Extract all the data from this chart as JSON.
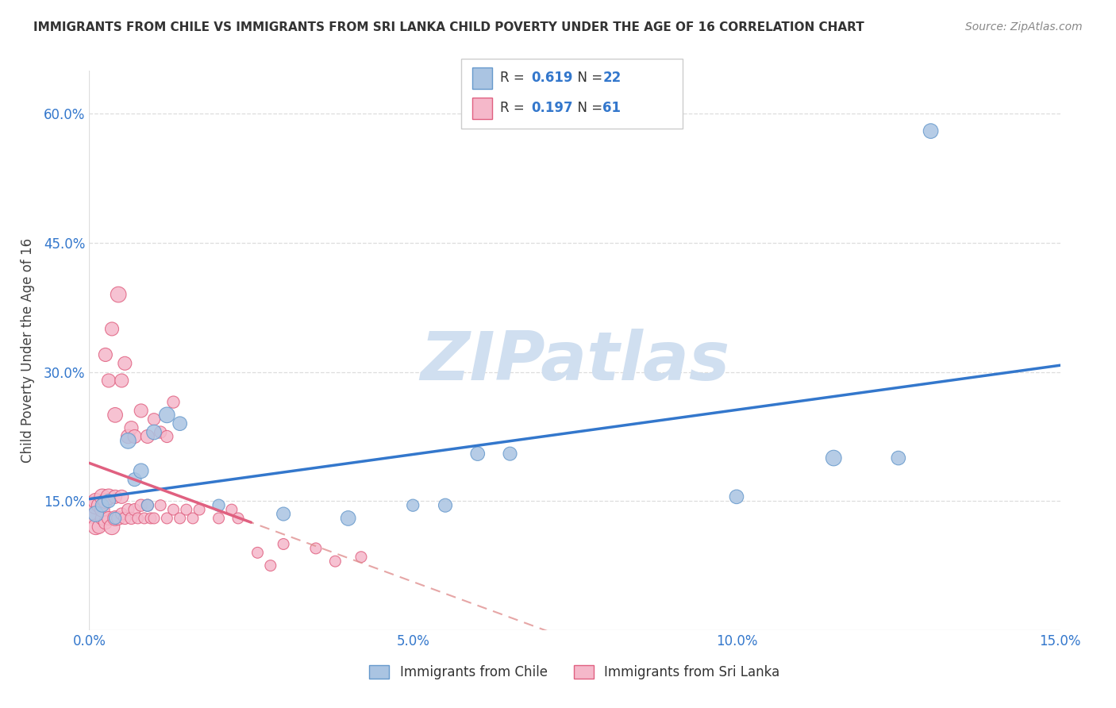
{
  "title": "IMMIGRANTS FROM CHILE VS IMMIGRANTS FROM SRI LANKA CHILD POVERTY UNDER THE AGE OF 16 CORRELATION CHART",
  "source": "Source: ZipAtlas.com",
  "ylabel": "Child Poverty Under the Age of 16",
  "xlim": [
    0.0,
    0.15
  ],
  "ylim": [
    0.0,
    0.65
  ],
  "yticks": [
    0.0,
    0.15,
    0.3,
    0.45,
    0.6
  ],
  "ytick_labels": [
    "",
    "15.0%",
    "30.0%",
    "45.0%",
    "60.0%"
  ],
  "xticks": [
    0.0,
    0.05,
    0.1,
    0.15
  ],
  "xtick_labels": [
    "0.0%",
    "5.0%",
    "10.0%",
    "15.0%"
  ],
  "chile_color": "#aac4e2",
  "chile_edge_color": "#6699cc",
  "srilanka_color": "#f5b8ca",
  "srilanka_edge_color": "#e06080",
  "chile_line_color": "#3377cc",
  "srilanka_line_color": "#e06080",
  "dashed_line_color": "#e09090",
  "watermark_color": "#d0dff0",
  "R_chile": 0.619,
  "N_chile": 22,
  "R_srilanka": 0.197,
  "N_srilanka": 61,
  "chile_scatter_x": [
    0.001,
    0.002,
    0.003,
    0.004,
    0.006,
    0.007,
    0.008,
    0.009,
    0.01,
    0.012,
    0.014,
    0.02,
    0.03,
    0.04,
    0.05,
    0.055,
    0.06,
    0.065,
    0.1,
    0.115,
    0.125,
    0.13
  ],
  "chile_scatter_y": [
    0.135,
    0.145,
    0.15,
    0.13,
    0.22,
    0.175,
    0.185,
    0.145,
    0.23,
    0.25,
    0.24,
    0.145,
    0.135,
    0.13,
    0.145,
    0.145,
    0.205,
    0.205,
    0.155,
    0.2,
    0.2,
    0.58
  ],
  "chile_scatter_size": [
    200,
    150,
    150,
    120,
    200,
    150,
    180,
    120,
    180,
    200,
    160,
    120,
    150,
    180,
    120,
    150,
    160,
    150,
    160,
    200,
    160,
    180
  ],
  "srilanka_scatter_x": [
    0.0005,
    0.001,
    0.001,
    0.001,
    0.0015,
    0.0015,
    0.002,
    0.002,
    0.002,
    0.0025,
    0.0025,
    0.0025,
    0.003,
    0.003,
    0.003,
    0.0035,
    0.0035,
    0.004,
    0.004,
    0.004,
    0.0045,
    0.0045,
    0.005,
    0.005,
    0.005,
    0.0055,
    0.0055,
    0.006,
    0.006,
    0.0065,
    0.0065,
    0.007,
    0.007,
    0.0075,
    0.008,
    0.008,
    0.0085,
    0.009,
    0.009,
    0.0095,
    0.01,
    0.01,
    0.011,
    0.011,
    0.012,
    0.012,
    0.013,
    0.013,
    0.014,
    0.015,
    0.016,
    0.017,
    0.02,
    0.022,
    0.023,
    0.026,
    0.028,
    0.03,
    0.035,
    0.038,
    0.042
  ],
  "srilanka_scatter_y": [
    0.14,
    0.12,
    0.145,
    0.15,
    0.12,
    0.145,
    0.13,
    0.14,
    0.155,
    0.125,
    0.15,
    0.32,
    0.13,
    0.155,
    0.29,
    0.12,
    0.35,
    0.13,
    0.155,
    0.25,
    0.13,
    0.39,
    0.135,
    0.155,
    0.29,
    0.13,
    0.31,
    0.14,
    0.225,
    0.13,
    0.235,
    0.14,
    0.225,
    0.13,
    0.145,
    0.255,
    0.13,
    0.145,
    0.225,
    0.13,
    0.13,
    0.245,
    0.145,
    0.23,
    0.13,
    0.225,
    0.14,
    0.265,
    0.13,
    0.14,
    0.13,
    0.14,
    0.13,
    0.14,
    0.13,
    0.09,
    0.075,
    0.1,
    0.095,
    0.08,
    0.085
  ],
  "srilanka_scatter_size": [
    600,
    200,
    250,
    200,
    150,
    180,
    150,
    180,
    200,
    150,
    180,
    150,
    150,
    200,
    150,
    200,
    150,
    180,
    150,
    180,
    150,
    200,
    120,
    150,
    150,
    120,
    150,
    120,
    160,
    120,
    150,
    120,
    150,
    100,
    120,
    150,
    100,
    120,
    150,
    100,
    100,
    120,
    100,
    120,
    100,
    120,
    100,
    120,
    100,
    100,
    100,
    100,
    100,
    100,
    100,
    100,
    100,
    100,
    100,
    100,
    100
  ],
  "grid_color": "#dddddd",
  "background_color": "#ffffff",
  "title_color": "#333333",
  "axis_label_color": "#444444",
  "tick_label_color": "#3377cc",
  "legend_value_color": "#3377cc"
}
